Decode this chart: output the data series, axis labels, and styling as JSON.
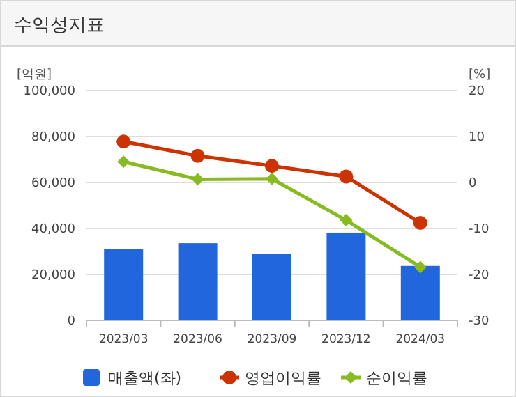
{
  "chart_data": {
    "type": "bar",
    "title": "수익성지표",
    "ylabel": "[억원]",
    "y2label": "[%]",
    "categories": [
      "2023/03",
      "2023/06",
      "2023/09",
      "2023/12",
      "2024/03"
    ],
    "series": [
      {
        "name": "매출액(좌)",
        "color": "#2266dd",
        "values": [
          31000,
          33600,
          29000,
          38200,
          23700
        ]
      },
      {
        "name": "영업이익률",
        "type": "line",
        "axis": "y2",
        "marker": "circle",
        "color": "#cc3300",
        "values": [
          8.9,
          5.8,
          3.6,
          1.3,
          -8.8
        ]
      },
      {
        "name": "순이익률",
        "type": "line",
        "axis": "y2",
        "marker": "diamond",
        "color": "#88bb22",
        "values": [
          4.5,
          0.7,
          0.8,
          -8.2,
          -18.4
        ]
      }
    ],
    "ylim": [
      0,
      100000
    ],
    "yticks": [
      {
        "value": 0,
        "label": "0"
      },
      {
        "value": 20000,
        "label": "20,000"
      },
      {
        "value": 40000,
        "label": "40,000"
      },
      {
        "value": 60000,
        "label": "60,000"
      },
      {
        "value": 80000,
        "label": "80,000"
      },
      {
        "value": 100000,
        "label": "100,000"
      }
    ],
    "y2lim": [
      -30,
      20
    ],
    "y2ticks": [
      -30,
      -20,
      -10,
      0,
      10,
      20
    ],
    "grid": "y",
    "legend": "bottom"
  }
}
